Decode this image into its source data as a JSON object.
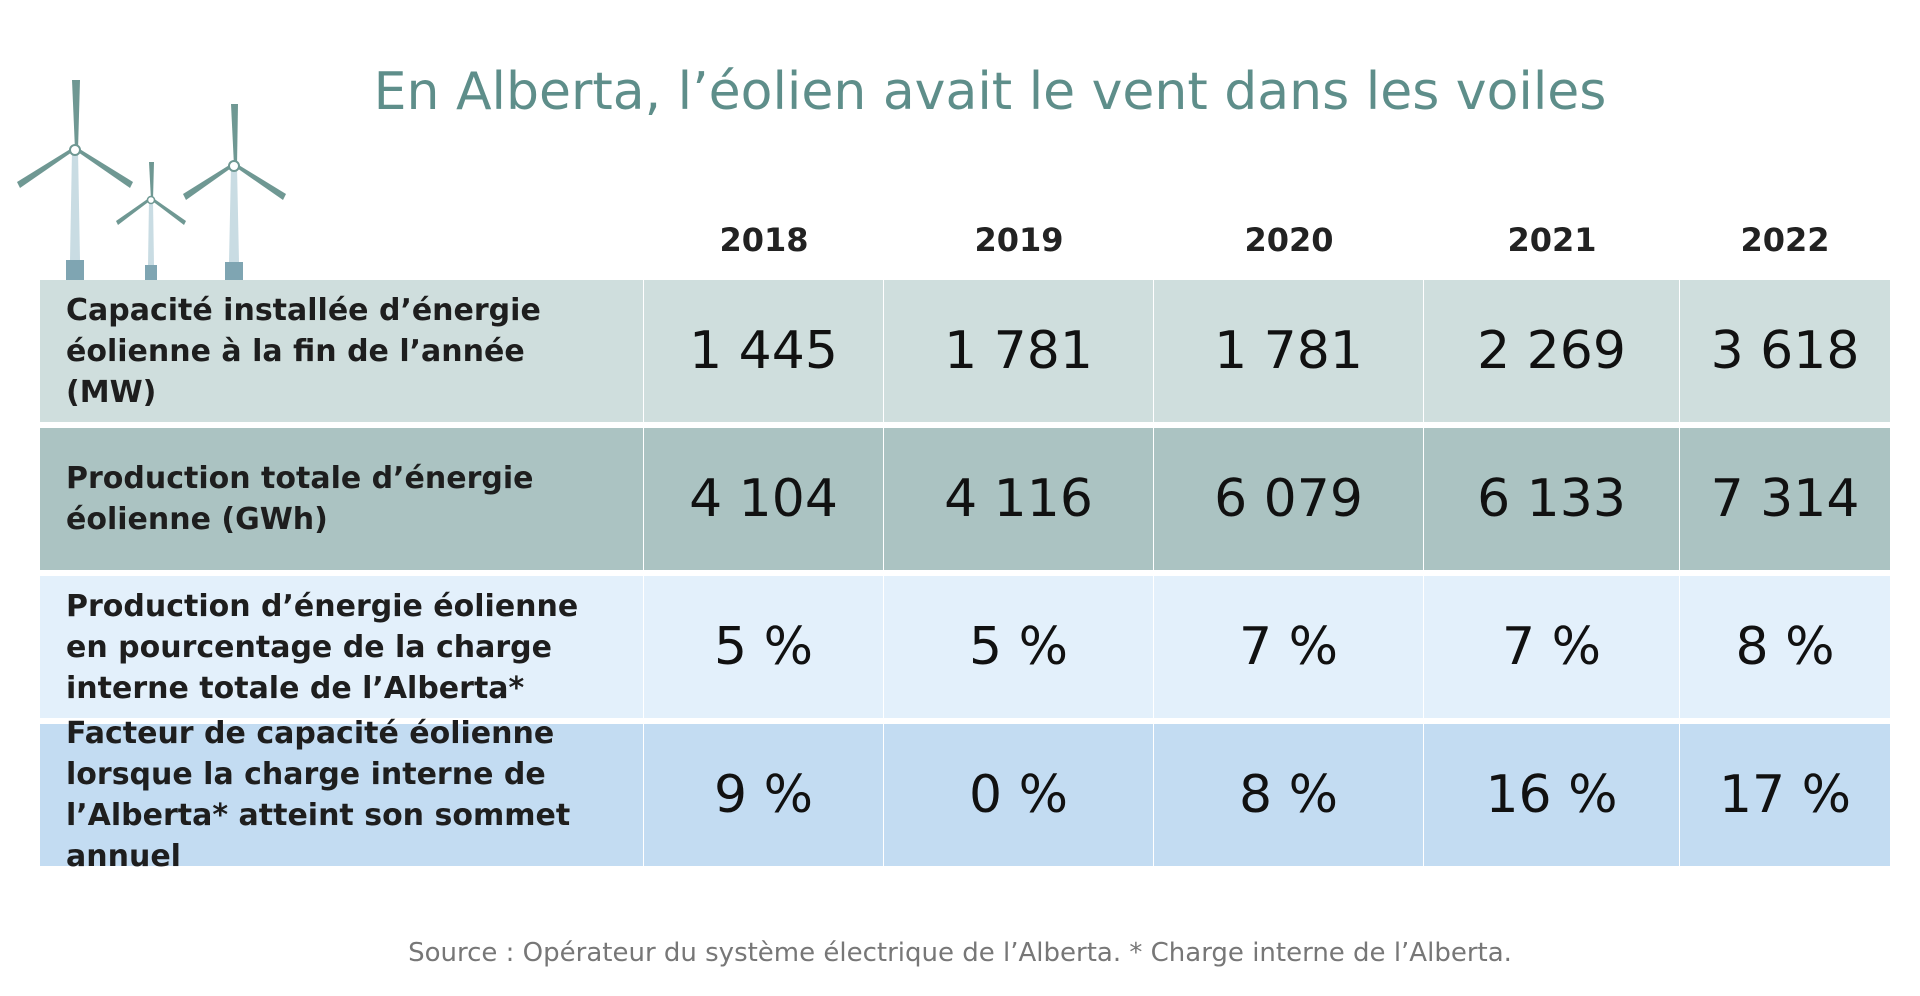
{
  "title": "En Alberta, l’éolien avait le vent dans les voiles",
  "source": "Source : Opérateur du système électrique de l’Alberta. * Charge interne de l’Alberta.",
  "colors": {
    "title": "#5e8e8a",
    "row_1": "#cfdedd",
    "row_2": "#abc3c2",
    "row_3": "#e3f0fb",
    "row_4": "#c3dcf2",
    "turbine_blade": "#6f9893",
    "turbine_tower": "#c9dce3",
    "turbine_base": "#7fa5b2"
  },
  "chart_data": {
    "type": "table",
    "columns": [
      "2018",
      "2019",
      "2020",
      "2021",
      "2022"
    ],
    "rows": [
      {
        "label": "Capacité installée d’énergie éolienne à la fin de l’année (MW)",
        "values": [
          "1 445",
          "1 781",
          "1 781",
          "2 269",
          "3 618"
        ]
      },
      {
        "label": "Production totale d’énergie éolienne (GWh)",
        "values": [
          "4 104",
          "4 116",
          "6 079",
          "6 133",
          "7 314"
        ]
      },
      {
        "label": "Production d’énergie éolienne en pourcentage de la charge interne totale de l’Alberta*",
        "values": [
          "5 %",
          "5 %",
          "7 %",
          "7 %",
          "8 %"
        ]
      },
      {
        "label": "Facteur de capacité éolienne lorsque la charge interne de l’Alberta* atteint son sommet annuel",
        "values": [
          "9 %",
          "0 %",
          "8 %",
          "16 %",
          "17 %"
        ]
      }
    ]
  }
}
